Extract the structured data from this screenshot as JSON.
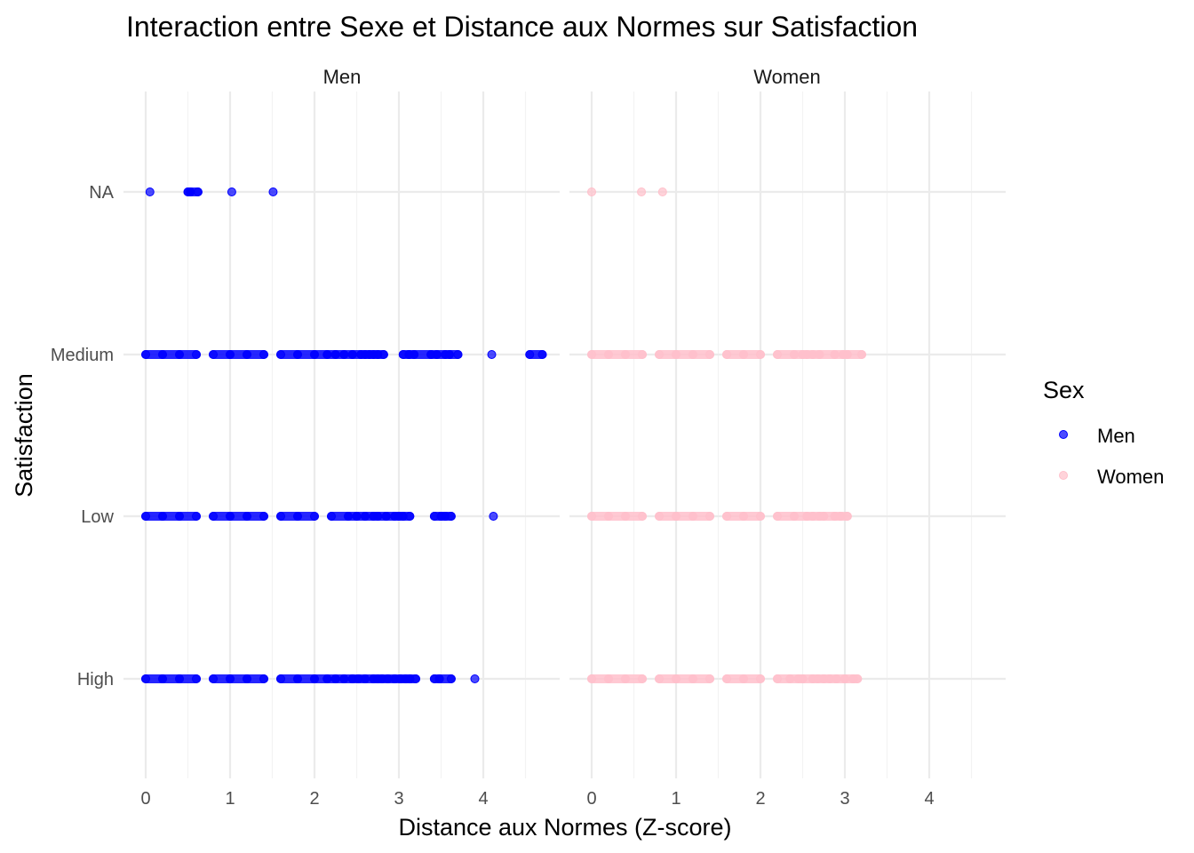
{
  "chart_data": {
    "type": "scatter",
    "title": "Interaction entre Sexe et Distance aux Normes sur Satisfaction",
    "xlabel": "Distance aux Normes (Z-score)",
    "ylabel": "Satisfaction",
    "categories": [
      "High",
      "Low",
      "Medium",
      "NA"
    ],
    "xlim": [
      -0.05,
      4.85
    ],
    "x_ticks": [
      "0",
      "1",
      "2",
      "3",
      "4"
    ],
    "grid": true,
    "facets": [
      "Men",
      "Women"
    ],
    "legend": {
      "title": "Sex",
      "position": "right",
      "items": [
        {
          "label": "Men",
          "color": "#0000ff"
        },
        {
          "label": "Women",
          "color": "#ffc0cb"
        }
      ]
    },
    "series": [
      {
        "name": "Men",
        "color": "#0000ff",
        "facet": "Men",
        "points": {
          "NA": [
            0.05,
            0.5,
            0.53,
            0.62,
            1.02,
            1.51
          ],
          "Medium": [
            0.0,
            0.2,
            0.4,
            0.6,
            0.8,
            1.0,
            1.2,
            1.4,
            1.6,
            1.8,
            2.0,
            2.15,
            2.25,
            2.35,
            2.45,
            2.55,
            2.6,
            2.65,
            2.7,
            2.75,
            2.82,
            3.05,
            3.12,
            3.18,
            3.38,
            3.45,
            3.55,
            3.6,
            3.7,
            4.1,
            4.55,
            4.7
          ],
          "Low": [
            0.0,
            0.2,
            0.4,
            0.6,
            0.8,
            1.0,
            1.2,
            1.4,
            1.6,
            1.8,
            2.0,
            2.2,
            2.4,
            2.5,
            2.6,
            2.7,
            2.75,
            2.85,
            2.95,
            3.0,
            3.05,
            3.13,
            3.42,
            3.5,
            3.55,
            3.62,
            4.12
          ],
          "High": [
            0.0,
            0.2,
            0.4,
            0.6,
            0.8,
            1.0,
            1.2,
            1.4,
            1.6,
            1.8,
            2.0,
            2.15,
            2.25,
            2.35,
            2.45,
            2.52,
            2.6,
            2.7,
            2.75,
            2.8,
            2.87,
            2.95,
            3.02,
            3.08,
            3.13,
            3.2,
            3.42,
            3.48,
            3.62,
            3.9
          ]
        }
      },
      {
        "name": "Women",
        "color": "#ffc0cb",
        "facet": "Women",
        "points": {
          "NA": [
            0.0,
            0.59,
            0.84
          ],
          "Medium": [
            0.0,
            0.2,
            0.4,
            0.6,
            0.8,
            1.0,
            1.2,
            1.4,
            1.6,
            1.8,
            2.0,
            2.2,
            2.4,
            2.5,
            2.55,
            2.62,
            2.7,
            2.88,
            2.98,
            3.03,
            3.2
          ],
          "Low": [
            0.0,
            0.2,
            0.4,
            0.6,
            0.8,
            1.0,
            1.2,
            1.4,
            1.6,
            1.8,
            2.0,
            2.2,
            2.4,
            2.55,
            2.62,
            2.7,
            2.75,
            2.88,
            2.95,
            3.03
          ],
          "High": [
            0.0,
            0.2,
            0.4,
            0.6,
            0.8,
            1.0,
            1.2,
            1.4,
            1.6,
            1.8,
            2.0,
            2.2,
            2.35,
            2.45,
            2.5,
            2.62,
            2.68,
            2.75,
            2.82,
            2.9,
            3.0,
            3.1,
            3.15
          ]
        }
      }
    ]
  }
}
